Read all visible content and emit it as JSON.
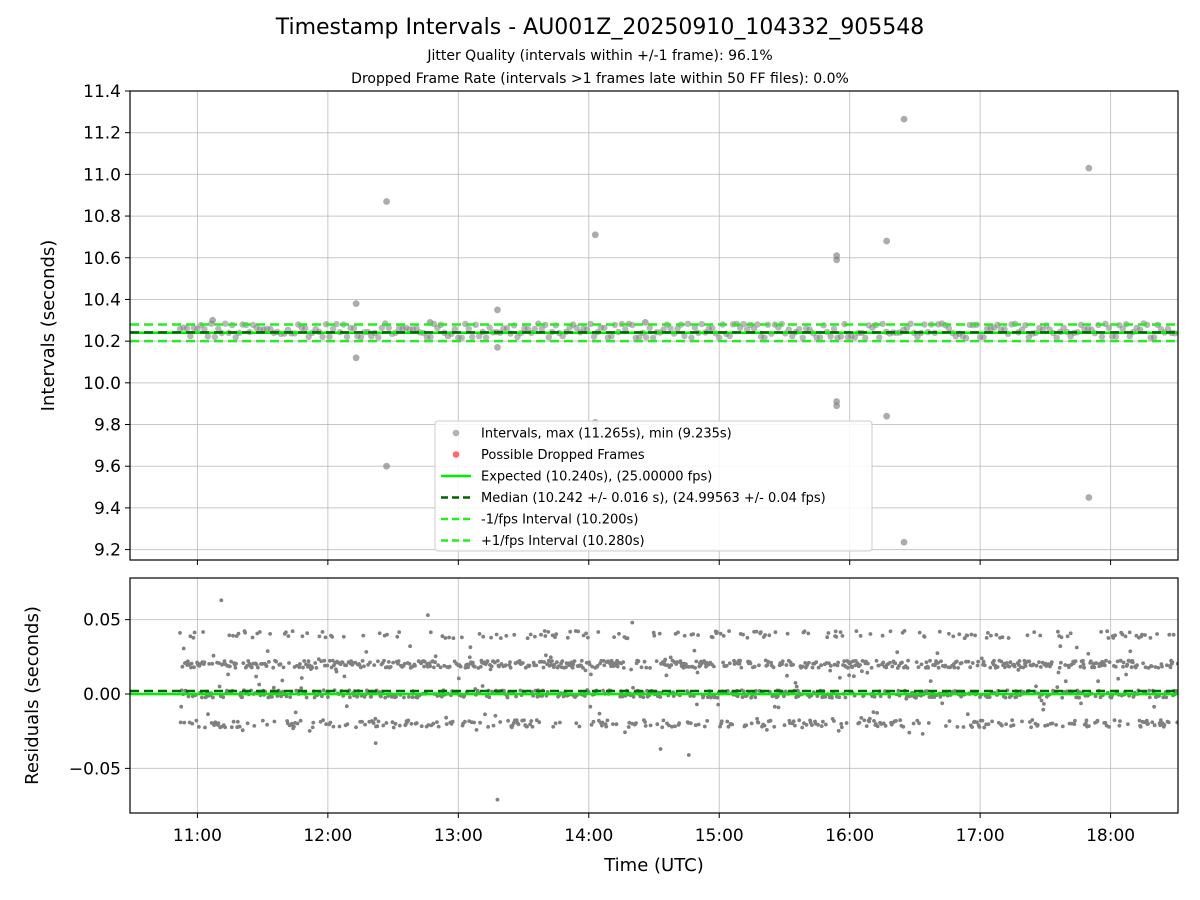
{
  "title": "Timestamp Intervals - AU001Z_20250910_104332_905548",
  "subtitle_jitter": "Jitter Quality (intervals within +/-1 frame): 96.1%",
  "subtitle_dropped": "Dropped Frame Rate (intervals >1 frames late within 50 FF files): 0.0%",
  "colors": {
    "points": "#808080",
    "dropped": "#ff4444",
    "expected": "#00ee00",
    "median": "#006400",
    "band": "#22ee22",
    "grid": "#b0b0b0"
  },
  "chart_data": [
    {
      "type": "scatter",
      "ylabel": "Intervals (seconds)",
      "xlim": [
        "10:29",
        "18:31"
      ],
      "ylim": [
        9.15,
        11.4
      ],
      "yticks": [
        "9.2",
        "9.4",
        "9.6",
        "9.8",
        "10.0",
        "10.2",
        "10.4",
        "10.6",
        "10.8",
        "11.0",
        "11.2",
        "11.4"
      ],
      "ytick_values": [
        9.2,
        9.4,
        9.6,
        9.8,
        10.0,
        10.2,
        10.4,
        10.6,
        10.8,
        11.0,
        11.2,
        11.4
      ],
      "grid": true,
      "legend_position": "lower center",
      "series": [
        {
          "name": "Intervals, max (11.265s), min (9.235s)",
          "kind": "points",
          "band": {
            "x_start": "10:52",
            "x_end": "18:31",
            "typical": [
              10.22,
              10.24,
              10.26,
              10.28
            ]
          },
          "outliers": [
            {
              "x": "11:07",
              "y": 10.3
            },
            {
              "x": "12:13",
              "y": 10.38
            },
            {
              "x": "12:13",
              "y": 10.12
            },
            {
              "x": "12:27",
              "y": 10.87
            },
            {
              "x": "12:27",
              "y": 9.6
            },
            {
              "x": "12:47",
              "y": 10.29
            },
            {
              "x": "13:18",
              "y": 10.35
            },
            {
              "x": "13:18",
              "y": 10.17
            },
            {
              "x": "14:03",
              "y": 10.71
            },
            {
              "x": "14:03",
              "y": 9.81
            },
            {
              "x": "14:26",
              "y": 10.29
            },
            {
              "x": "15:54",
              "y": 10.61
            },
            {
              "x": "15:54",
              "y": 10.59
            },
            {
              "x": "15:54",
              "y": 9.91
            },
            {
              "x": "15:54",
              "y": 9.89
            },
            {
              "x": "16:17",
              "y": 10.68
            },
            {
              "x": "16:17",
              "y": 9.84
            },
            {
              "x": "16:25",
              "y": 11.265
            },
            {
              "x": "16:25",
              "y": 9.235
            },
            {
              "x": "17:50",
              "y": 11.03
            },
            {
              "x": "17:50",
              "y": 9.45
            }
          ]
        },
        {
          "name": "Possible Dropped Frames",
          "kind": "points",
          "values": []
        },
        {
          "name": "Expected (10.240s), (25.00000 fps)",
          "kind": "hline",
          "y": 10.24
        },
        {
          "name": "Median (10.242 +/- 0.016 s), (24.99563 +/- 0.04 fps)",
          "kind": "hline-dashed",
          "y": 10.242
        },
        {
          "name": "-1/fps Interval (10.200s)",
          "kind": "hline-dashed",
          "y": 10.2
        },
        {
          "name": "+1/fps Interval (10.280s)",
          "kind": "hline-dashed",
          "y": 10.28
        }
      ]
    },
    {
      "type": "scatter",
      "xlabel": "Time (UTC)",
      "ylabel": "Residuals (seconds)",
      "xlim": [
        "10:29",
        "18:31"
      ],
      "ylim": [
        -0.08,
        0.078
      ],
      "xticks": [
        "11:00",
        "12:00",
        "13:00",
        "14:00",
        "15:00",
        "16:00",
        "17:00",
        "18:00"
      ],
      "yticks": [
        "−0.05",
        "0.00",
        "0.05"
      ],
      "ytick_values": [
        -0.05,
        0.0,
        0.05
      ],
      "grid": true,
      "series": [
        {
          "name": "Residuals",
          "kind": "points",
          "levels": [
            -0.02,
            0.0,
            0.02,
            0.04
          ],
          "x_start": "10:52",
          "x_end": "18:31",
          "outliers": [
            {
              "x": "11:11",
              "y": 0.063
            },
            {
              "x": "12:46",
              "y": 0.053
            },
            {
              "x": "12:22",
              "y": -0.033
            },
            {
              "x": "13:18",
              "y": -0.071
            },
            {
              "x": "14:20",
              "y": 0.048
            },
            {
              "x": "14:46",
              "y": -0.041
            },
            {
              "x": "14:33",
              "y": -0.037
            }
          ]
        },
        {
          "name": "Expected",
          "kind": "hline",
          "y": 0.0
        },
        {
          "name": "Median",
          "kind": "hline-dashed",
          "y": 0.002
        }
      ]
    }
  ]
}
